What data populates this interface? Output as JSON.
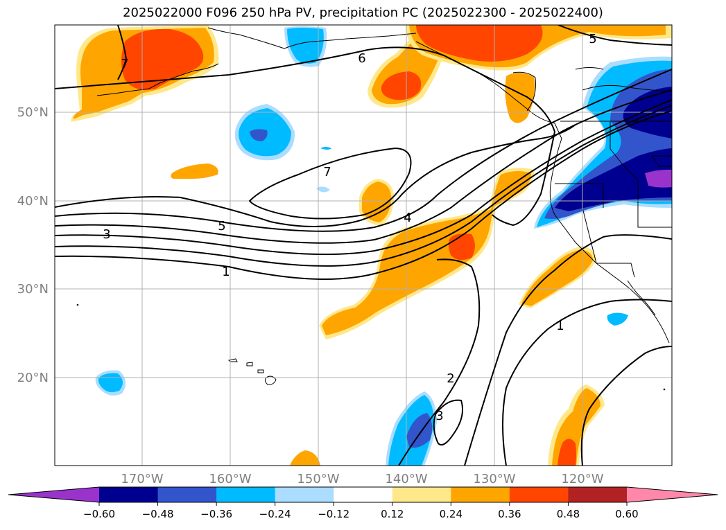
{
  "title": "2025022000 F096 250 hPa PV, precipitation PC (2025022300 - 2025022400)",
  "lat_labels": [
    "50°N",
    "40°N",
    "30°N",
    "20°N"
  ],
  "lon_labels": [
    "170°W",
    "160°W",
    "150°W",
    "140°W",
    "130°W",
    "120°W"
  ],
  "contour_labels": [
    "6",
    "5",
    "7",
    "4",
    "5",
    "3",
    "1",
    "1",
    "2",
    "3",
    "7"
  ],
  "colorbar": {
    "tick_labels": [
      "−0.60",
      "−0.48",
      "−0.36",
      "−0.24",
      "−0.12",
      "0.12",
      "0.24",
      "0.36",
      "0.48",
      "0.60"
    ],
    "colors": [
      "#9933cc",
      "#000090",
      "#3355cc",
      "#00bbff",
      "#aaddff",
      "#ffffff",
      "#ffe88a",
      "#ffa500",
      "#ff4500",
      "#b22222",
      "#ff88aa"
    ]
  }
}
